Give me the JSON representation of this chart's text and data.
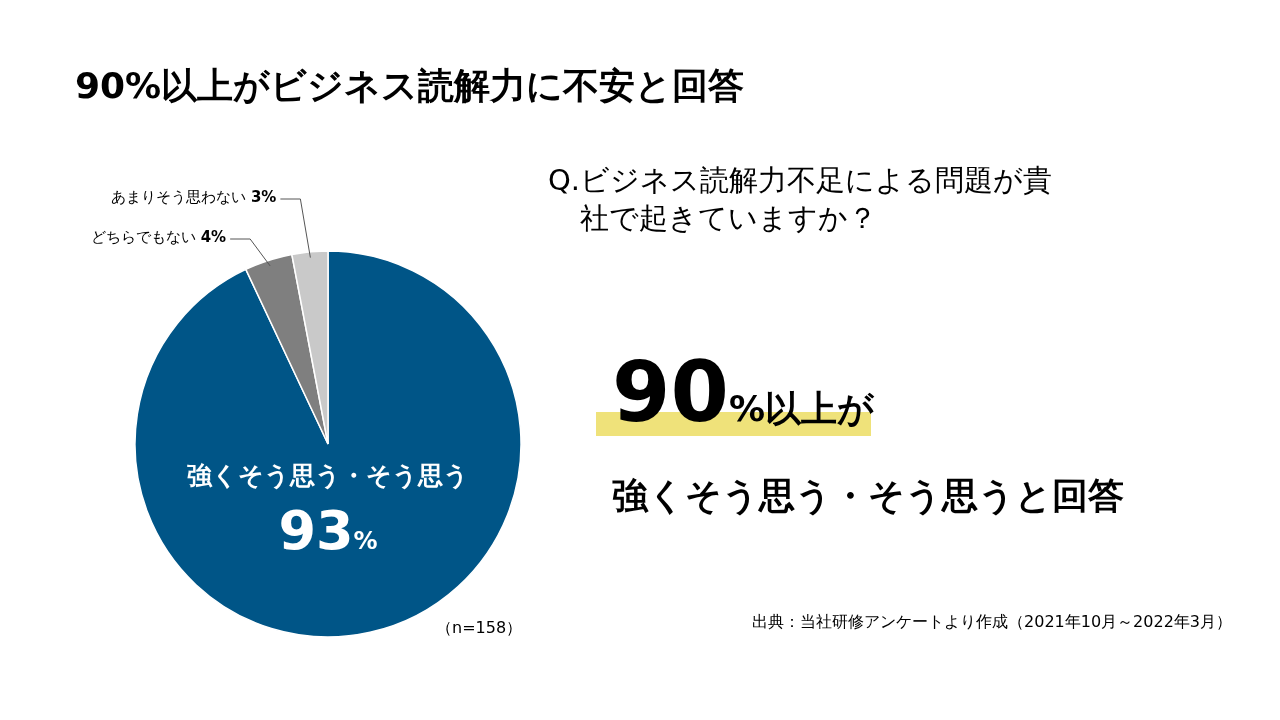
{
  "chart_data": {
    "type": "pie",
    "title": "90%以上がビジネス読解力に不安と回答",
    "categories": [
      "強くそう思う・そう思う",
      "どちらでもない",
      "あまりそう思わない"
    ],
    "values": [
      93,
      4,
      3
    ],
    "colors": [
      "#005587",
      "#7f7f7f",
      "#c9c9c9"
    ],
    "value_labels": [
      "93%",
      "4%",
      "3%"
    ],
    "annotations": [
      "Q.ビジネス読解力不足による問題が貴社で起きていますか？",
      "90%以上が",
      "強くそう思う・そう思うと回答",
      "（n=158）",
      "出典：当社研修アンケートより作成（2021年10月～2022年3月）"
    ]
  }
}
